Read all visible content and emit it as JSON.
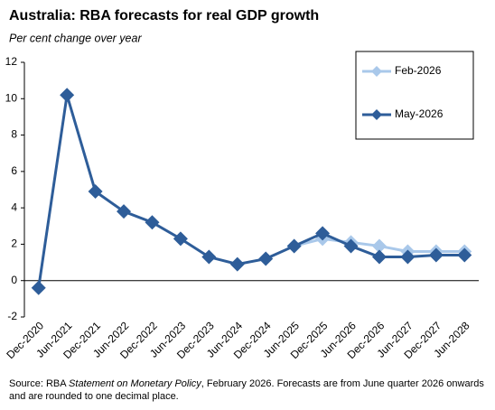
{
  "chart_data": {
    "type": "line",
    "title": "Australia: RBA forecasts for real GDP growth",
    "subtitle": "Per cent change over year",
    "categories": [
      "Dec-2020",
      "Jun-2021",
      "Dec-2021",
      "Jun-2022",
      "Dec-2022",
      "Jun-2023",
      "Dec-2023",
      "Jun-2024",
      "Dec-2024",
      "Jun-2025",
      "Dec-2025",
      "Jun-2026",
      "Dec-2026",
      "Jun-2027",
      "Dec-2027",
      "Jun-2028"
    ],
    "series": [
      {
        "name": "Feb-2026",
        "color": "#a9c8ea",
        "values": [
          null,
          null,
          null,
          null,
          null,
          null,
          null,
          null,
          null,
          1.9,
          2.3,
          2.1,
          1.9,
          1.6,
          1.6,
          1.6
        ]
      },
      {
        "name": "May-2026",
        "color": "#2e5d99",
        "values": [
          -0.4,
          10.2,
          4.9,
          3.8,
          3.2,
          2.3,
          1.3,
          0.9,
          1.2,
          1.9,
          2.6,
          1.9,
          1.3,
          1.3,
          1.4,
          1.4
        ]
      }
    ],
    "ylim": [
      -2,
      12
    ],
    "yticks": [
      -2,
      0,
      2,
      4,
      6,
      8,
      10,
      12
    ],
    "grid": false,
    "legend": "top-right",
    "source": {
      "prefix": "Source: RBA ",
      "italic": "Statement on Monetary Policy",
      "rest": ", February 2026. Forecasts are from June quarter 2026 onwards and are rounded to one decimal place."
    }
  }
}
